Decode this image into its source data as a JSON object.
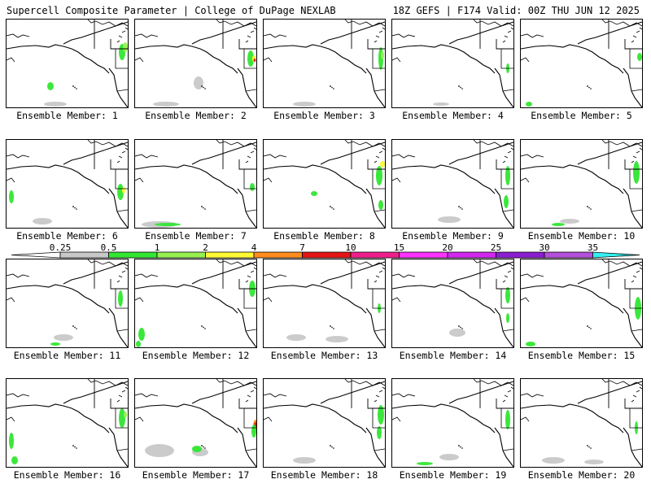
{
  "header": {
    "left": "Supercell Composite Parameter | College of DuPage NEXLAB",
    "right": "18Z GEFS | F174 Valid: 00Z THU JUN 12 2025"
  },
  "legend": {
    "ticks": [
      "0.25",
      "0.5",
      "1",
      "2",
      "4",
      "7",
      "10",
      "15",
      "20",
      "25",
      "30",
      "35"
    ],
    "colors": [
      "#ffffff",
      "#c8c8c8",
      "#32e632",
      "#96f050",
      "#fffa32",
      "#ff8c1e",
      "#e61414",
      "#f01e8c",
      "#ff32ff",
      "#d228f0",
      "#8c1ed2",
      "#b450dc",
      "#32f0f0"
    ]
  },
  "map_colors": {
    "coast": "#000000",
    "gray": "#c8c8c8",
    "green": "#32e632",
    "lime": "#96f050",
    "yellow": "#fffa32",
    "orange": "#ff8c1e",
    "red": "#e61414"
  },
  "members": [
    {
      "label": "Ensemble Member: 1"
    },
    {
      "label": "Ensemble Member: 2"
    },
    {
      "label": "Ensemble Member: 3"
    },
    {
      "label": "Ensemble Member: 4"
    },
    {
      "label": "Ensemble Member: 5"
    },
    {
      "label": "Ensemble Member: 6"
    },
    {
      "label": "Ensemble Member: 7"
    },
    {
      "label": "Ensemble Member: 8"
    },
    {
      "label": "Ensemble Member: 9"
    },
    {
      "label": "Ensemble Member: 10"
    },
    {
      "label": "Ensemble Member: 11"
    },
    {
      "label": "Ensemble Member: 12"
    },
    {
      "label": "Ensemble Member: 13"
    },
    {
      "label": "Ensemble Member: 14"
    },
    {
      "label": "Ensemble Member: 15"
    },
    {
      "label": "Ensemble Member: 16"
    },
    {
      "label": "Ensemble Member: 17"
    },
    {
      "label": "Ensemble Member: 18"
    },
    {
      "label": "Ensemble Member: 19"
    },
    {
      "label": "Ensemble Member: 20"
    }
  ]
}
